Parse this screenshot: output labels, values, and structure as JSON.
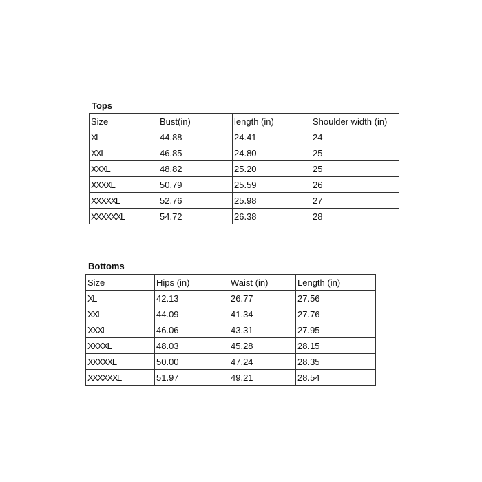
{
  "tops": {
    "title": "Tops",
    "headers": [
      "Size",
      "Bust(in)",
      "length (in)",
      "Shoulder width (in)"
    ],
    "rows": [
      [
        "XL",
        "44.88",
        "24.41",
        "24"
      ],
      [
        "XXL",
        "46.85",
        "24.80",
        "25"
      ],
      [
        "XXXL",
        "48.82",
        "25.20",
        "25"
      ],
      [
        "XXXXL",
        "50.79",
        "25.59",
        "26"
      ],
      [
        "XXXXXL",
        "52.76",
        "25.98",
        "27"
      ],
      [
        "XXXXXXL",
        "54.72",
        "26.38",
        "28"
      ]
    ]
  },
  "bottoms": {
    "title": "Bottoms",
    "headers": [
      "Size",
      "Hips (in)",
      "Waist (in)",
      "Length (in)"
    ],
    "rows": [
      [
        "XL",
        "42.13",
        "26.77",
        "27.56"
      ],
      [
        "XXL",
        "44.09",
        "41.34",
        "27.76"
      ],
      [
        "XXXL",
        "46.06",
        "43.31",
        "27.95"
      ],
      [
        "XXXXL",
        "48.03",
        "45.28",
        "28.15"
      ],
      [
        "XXXXXL",
        "50.00",
        "47.24",
        "28.35"
      ],
      [
        "XXXXXXL",
        "51.97",
        "49.21",
        "28.54"
      ]
    ]
  }
}
